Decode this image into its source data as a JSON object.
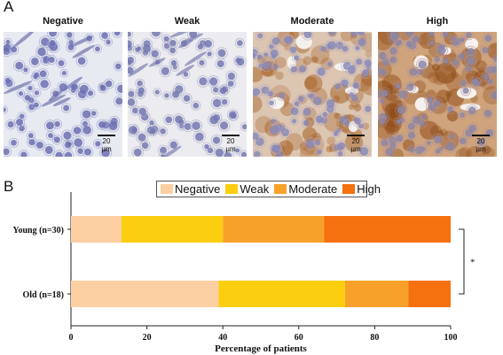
{
  "panelA": {
    "letter": "A",
    "images": [
      {
        "label": "Negative",
        "scale": "20 µm",
        "stain": "negative"
      },
      {
        "label": "Weak",
        "scale": "20 µm",
        "stain": "weak"
      },
      {
        "label": "Moderate",
        "scale": "20 µm",
        "stain": "moderate"
      },
      {
        "label": "High",
        "scale": "20 µm",
        "stain": "high"
      }
    ]
  },
  "panelB": {
    "letter": "B"
  },
  "chart_data": {
    "type": "bar",
    "orientation": "horizontal",
    "stacked": true,
    "categories": [
      "Young (n=30)",
      "Old (n=18)"
    ],
    "series": [
      {
        "name": "Negative",
        "color": "#FCCFA2",
        "values": [
          13.3,
          38.9
        ]
      },
      {
        "name": "Weak",
        "color": "#FCCE10",
        "values": [
          26.7,
          33.3
        ]
      },
      {
        "name": "Moderate",
        "color": "#F7A12B",
        "values": [
          26.7,
          16.7
        ]
      },
      {
        "name": "High",
        "color": "#F5700F",
        "values": [
          33.3,
          11.1
        ]
      }
    ],
    "xlabel": "Percentage of patients",
    "xlim": [
      0,
      100
    ],
    "xticks": [
      "0",
      "20",
      "40",
      "60",
      "80",
      "100"
    ],
    "legend_position": "top",
    "grid": false,
    "annotation": "*"
  }
}
